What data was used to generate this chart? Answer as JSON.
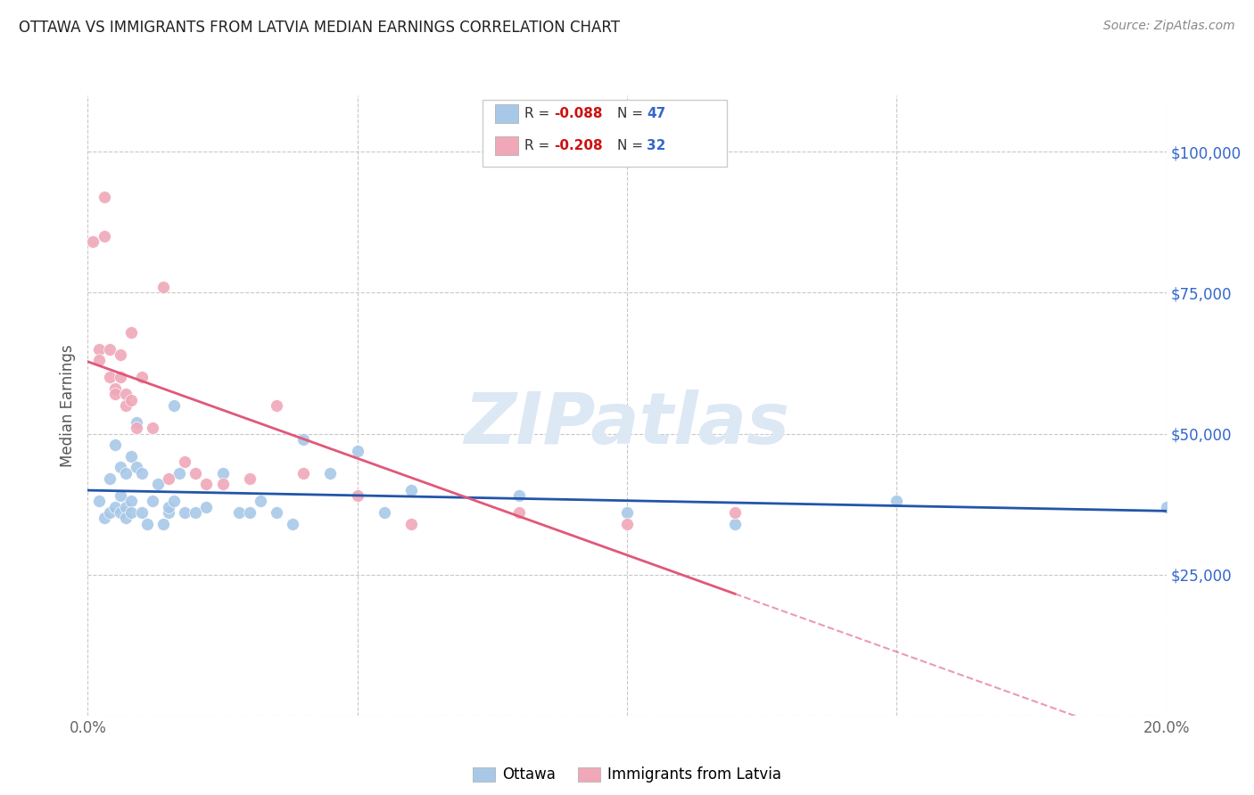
{
  "title": "OTTAWA VS IMMIGRANTS FROM LATVIA MEDIAN EARNINGS CORRELATION CHART",
  "source": "Source: ZipAtlas.com",
  "ylabel": "Median Earnings",
  "xlim": [
    0.0,
    0.2
  ],
  "ylim": [
    0,
    110000
  ],
  "yticks": [
    0,
    25000,
    50000,
    75000,
    100000
  ],
  "ytick_labels": [
    "",
    "$25,000",
    "$50,000",
    "$75,000",
    "$100,000"
  ],
  "xticks": [
    0.0,
    0.05,
    0.1,
    0.15,
    0.2
  ],
  "xtick_labels": [
    "0.0%",
    "",
    "",
    "",
    "20.0%"
  ],
  "background_color": "#ffffff",
  "grid_color": "#c8c8c8",
  "ottawa_color": "#a8c8e8",
  "latvia_color": "#f0a8b8",
  "trend_ottawa_color": "#2255aa",
  "trend_latvia_color": "#e05878",
  "watermark_color": "#dce8f4",
  "ottawa_x": [
    0.002,
    0.003,
    0.004,
    0.004,
    0.005,
    0.005,
    0.006,
    0.006,
    0.006,
    0.007,
    0.007,
    0.007,
    0.008,
    0.008,
    0.008,
    0.009,
    0.009,
    0.01,
    0.01,
    0.011,
    0.012,
    0.013,
    0.014,
    0.015,
    0.015,
    0.016,
    0.016,
    0.017,
    0.018,
    0.02,
    0.022,
    0.025,
    0.028,
    0.03,
    0.032,
    0.035,
    0.038,
    0.04,
    0.045,
    0.05,
    0.055,
    0.06,
    0.08,
    0.1,
    0.12,
    0.15,
    0.2
  ],
  "ottawa_y": [
    38000,
    35000,
    42000,
    36000,
    48000,
    37000,
    44000,
    39000,
    36000,
    43000,
    37000,
    35000,
    46000,
    38000,
    36000,
    52000,
    44000,
    43000,
    36000,
    34000,
    38000,
    41000,
    34000,
    36000,
    37000,
    55000,
    38000,
    43000,
    36000,
    36000,
    37000,
    43000,
    36000,
    36000,
    38000,
    36000,
    34000,
    49000,
    43000,
    47000,
    36000,
    40000,
    39000,
    36000,
    34000,
    38000,
    37000
  ],
  "latvia_x": [
    0.001,
    0.002,
    0.002,
    0.003,
    0.003,
    0.004,
    0.004,
    0.005,
    0.005,
    0.006,
    0.006,
    0.007,
    0.007,
    0.008,
    0.008,
    0.009,
    0.01,
    0.012,
    0.014,
    0.015,
    0.018,
    0.02,
    0.022,
    0.025,
    0.03,
    0.035,
    0.04,
    0.05,
    0.06,
    0.08,
    0.1,
    0.12
  ],
  "latvia_y": [
    84000,
    65000,
    63000,
    92000,
    85000,
    65000,
    60000,
    58000,
    57000,
    64000,
    60000,
    57000,
    55000,
    68000,
    56000,
    51000,
    60000,
    51000,
    76000,
    42000,
    45000,
    43000,
    41000,
    41000,
    42000,
    55000,
    43000,
    39000,
    34000,
    36000,
    34000,
    36000
  ],
  "ottawa_R": -0.088,
  "ottawa_N": 47,
  "latvia_R": -0.208,
  "latvia_N": 32
}
